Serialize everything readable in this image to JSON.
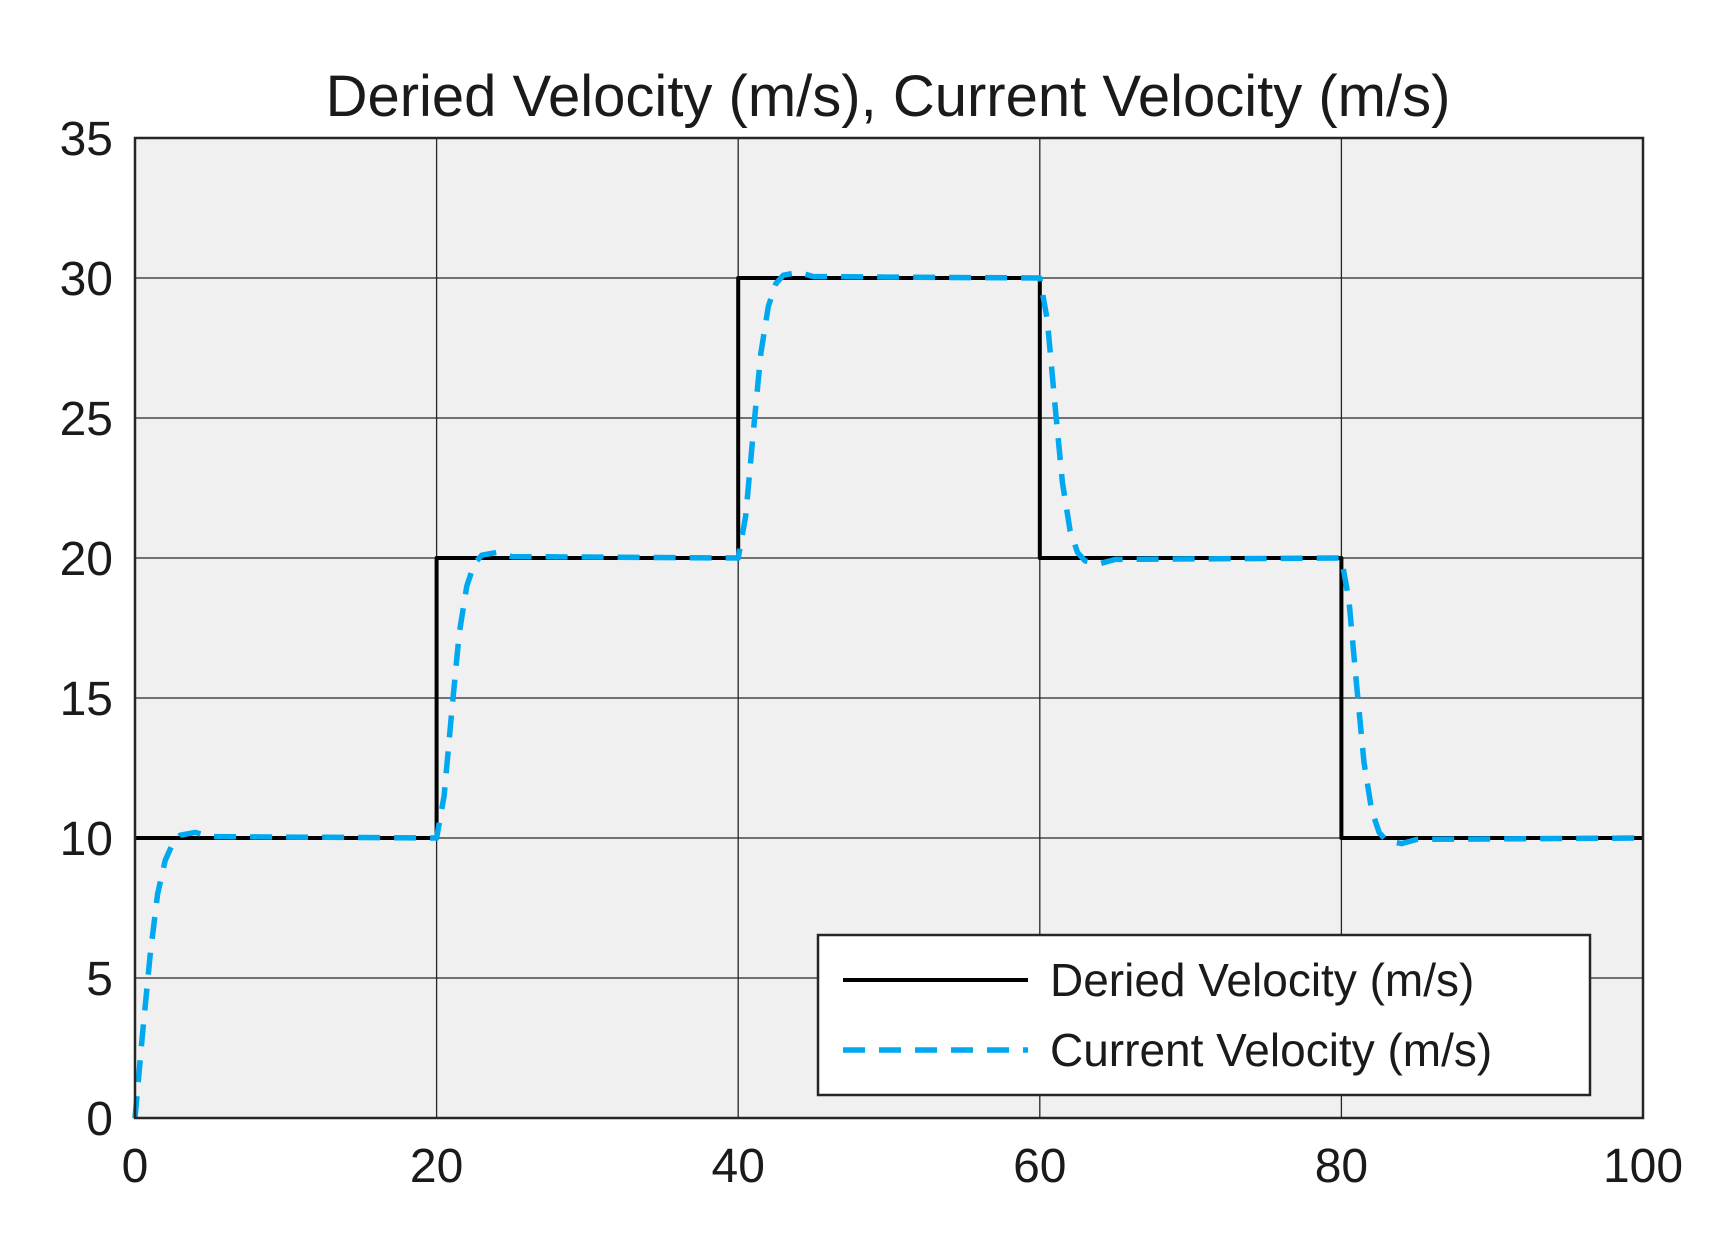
{
  "chart_data": {
    "type": "line",
    "title": "Deried Velocity (m/s), Current Velocity (m/s)",
    "xlabel": "",
    "ylabel": "",
    "xlim": [
      0,
      100
    ],
    "ylim": [
      0,
      35
    ],
    "xticks": [
      0,
      20,
      40,
      60,
      80,
      100
    ],
    "yticks": [
      0,
      5,
      10,
      15,
      20,
      25,
      30,
      35
    ],
    "grid": true,
    "legend_position": "bottom-right",
    "colors": {
      "plot_bg": "#f0f0f0",
      "grid": "#262626",
      "desired": "#000000",
      "current": "#00a8f0"
    },
    "series": [
      {
        "name": "Deried Velocity (m/s)",
        "style": "solid",
        "x": [
          0,
          20,
          20,
          40,
          40,
          60,
          60,
          80,
          80,
          100
        ],
        "y": [
          10,
          10,
          20,
          20,
          30,
          30,
          20,
          20,
          10,
          10
        ]
      },
      {
        "name": "Current Velocity (m/s)",
        "style": "dashed",
        "x": [
          0,
          0.5,
          1,
          1.5,
          2,
          2.5,
          3,
          4,
          5,
          20,
          20.5,
          21,
          21.5,
          22,
          22.5,
          23,
          24,
          25,
          40,
          40.5,
          41,
          41.5,
          42,
          42.5,
          43,
          44,
          45,
          60,
          60.5,
          61,
          61.5,
          62,
          62.5,
          63,
          64,
          65,
          80,
          80.5,
          81,
          81.5,
          82,
          82.5,
          83,
          84,
          85,
          100
        ],
        "y": [
          0,
          3,
          5.8,
          8,
          9.2,
          9.8,
          10.1,
          10.2,
          10.05,
          10,
          11.5,
          14.5,
          17.3,
          19,
          19.8,
          20.1,
          20.2,
          20.05,
          20,
          21.5,
          24.5,
          27.3,
          29,
          29.8,
          30.1,
          30.2,
          30.05,
          30,
          28.5,
          25.5,
          22.7,
          21,
          20.2,
          19.9,
          19.8,
          19.95,
          20,
          18.5,
          15.5,
          12.7,
          11,
          10.2,
          9.9,
          9.8,
          9.95,
          10
        ]
      }
    ]
  }
}
